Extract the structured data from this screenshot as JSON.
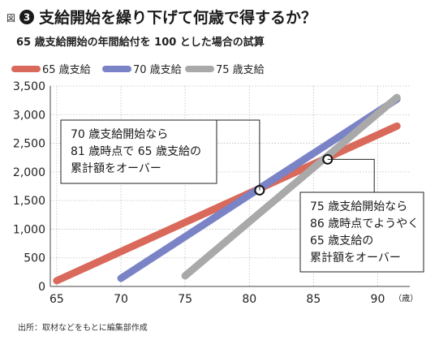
{
  "header": {
    "fig_label": "図",
    "fig_number": "3",
    "title": "支給開始を繰り下げて何歳で得するか？",
    "subtitle": "65 歳支給開始の年間給付を 100 とした場合の試算"
  },
  "colors": {
    "s65": "#d9695a",
    "s70": "#7a83c6",
    "s75": "#a9a9a9",
    "badge": "#1a1a1a",
    "grid": "#bfbfbf",
    "text": "#222222"
  },
  "chart_data": {
    "type": "line",
    "title": "",
    "xlabel": "（歳）",
    "ylabel": "",
    "xlim": [
      64.5,
      92.5
    ],
    "ylim": [
      0,
      3500
    ],
    "xticks": [
      "65",
      "70",
      "75",
      "80",
      "85",
      "90"
    ],
    "yticks": [
      "0",
      "500",
      "1,000",
      "1,500",
      "2,000",
      "2,500",
      "3,000",
      "3,500"
    ],
    "grid": true,
    "legend_position": "top-left",
    "series": [
      {
        "name": "65 歳支給",
        "color_key": "s65",
        "x": [
          65,
          91.5
        ],
        "y": [
          100,
          2800
        ]
      },
      {
        "name": "70 歳支給",
        "color_key": "s70",
        "x": [
          70,
          91.5
        ],
        "y": [
          142,
          3270
        ]
      },
      {
        "name": "75 歳支給",
        "color_key": "s75",
        "x": [
          75,
          91.5
        ],
        "y": [
          185,
          3300
        ]
      }
    ],
    "markers": [
      {
        "x": 80.8,
        "y": 1680
      },
      {
        "x": 86.1,
        "y": 2220
      }
    ],
    "annotations": [
      {
        "lines": [
          "70 歳支給開始なら",
          "81 歳時点で 65 歳支給の",
          "累計額をオーバー"
        ]
      },
      {
        "lines": [
          "75 歳支給開始なら",
          "86 歳時点でようやく",
          "65 歳支給の",
          "累計額をオーバー"
        ]
      }
    ]
  },
  "footer": {
    "source": "出所：取材などをもとに編集部作成"
  }
}
